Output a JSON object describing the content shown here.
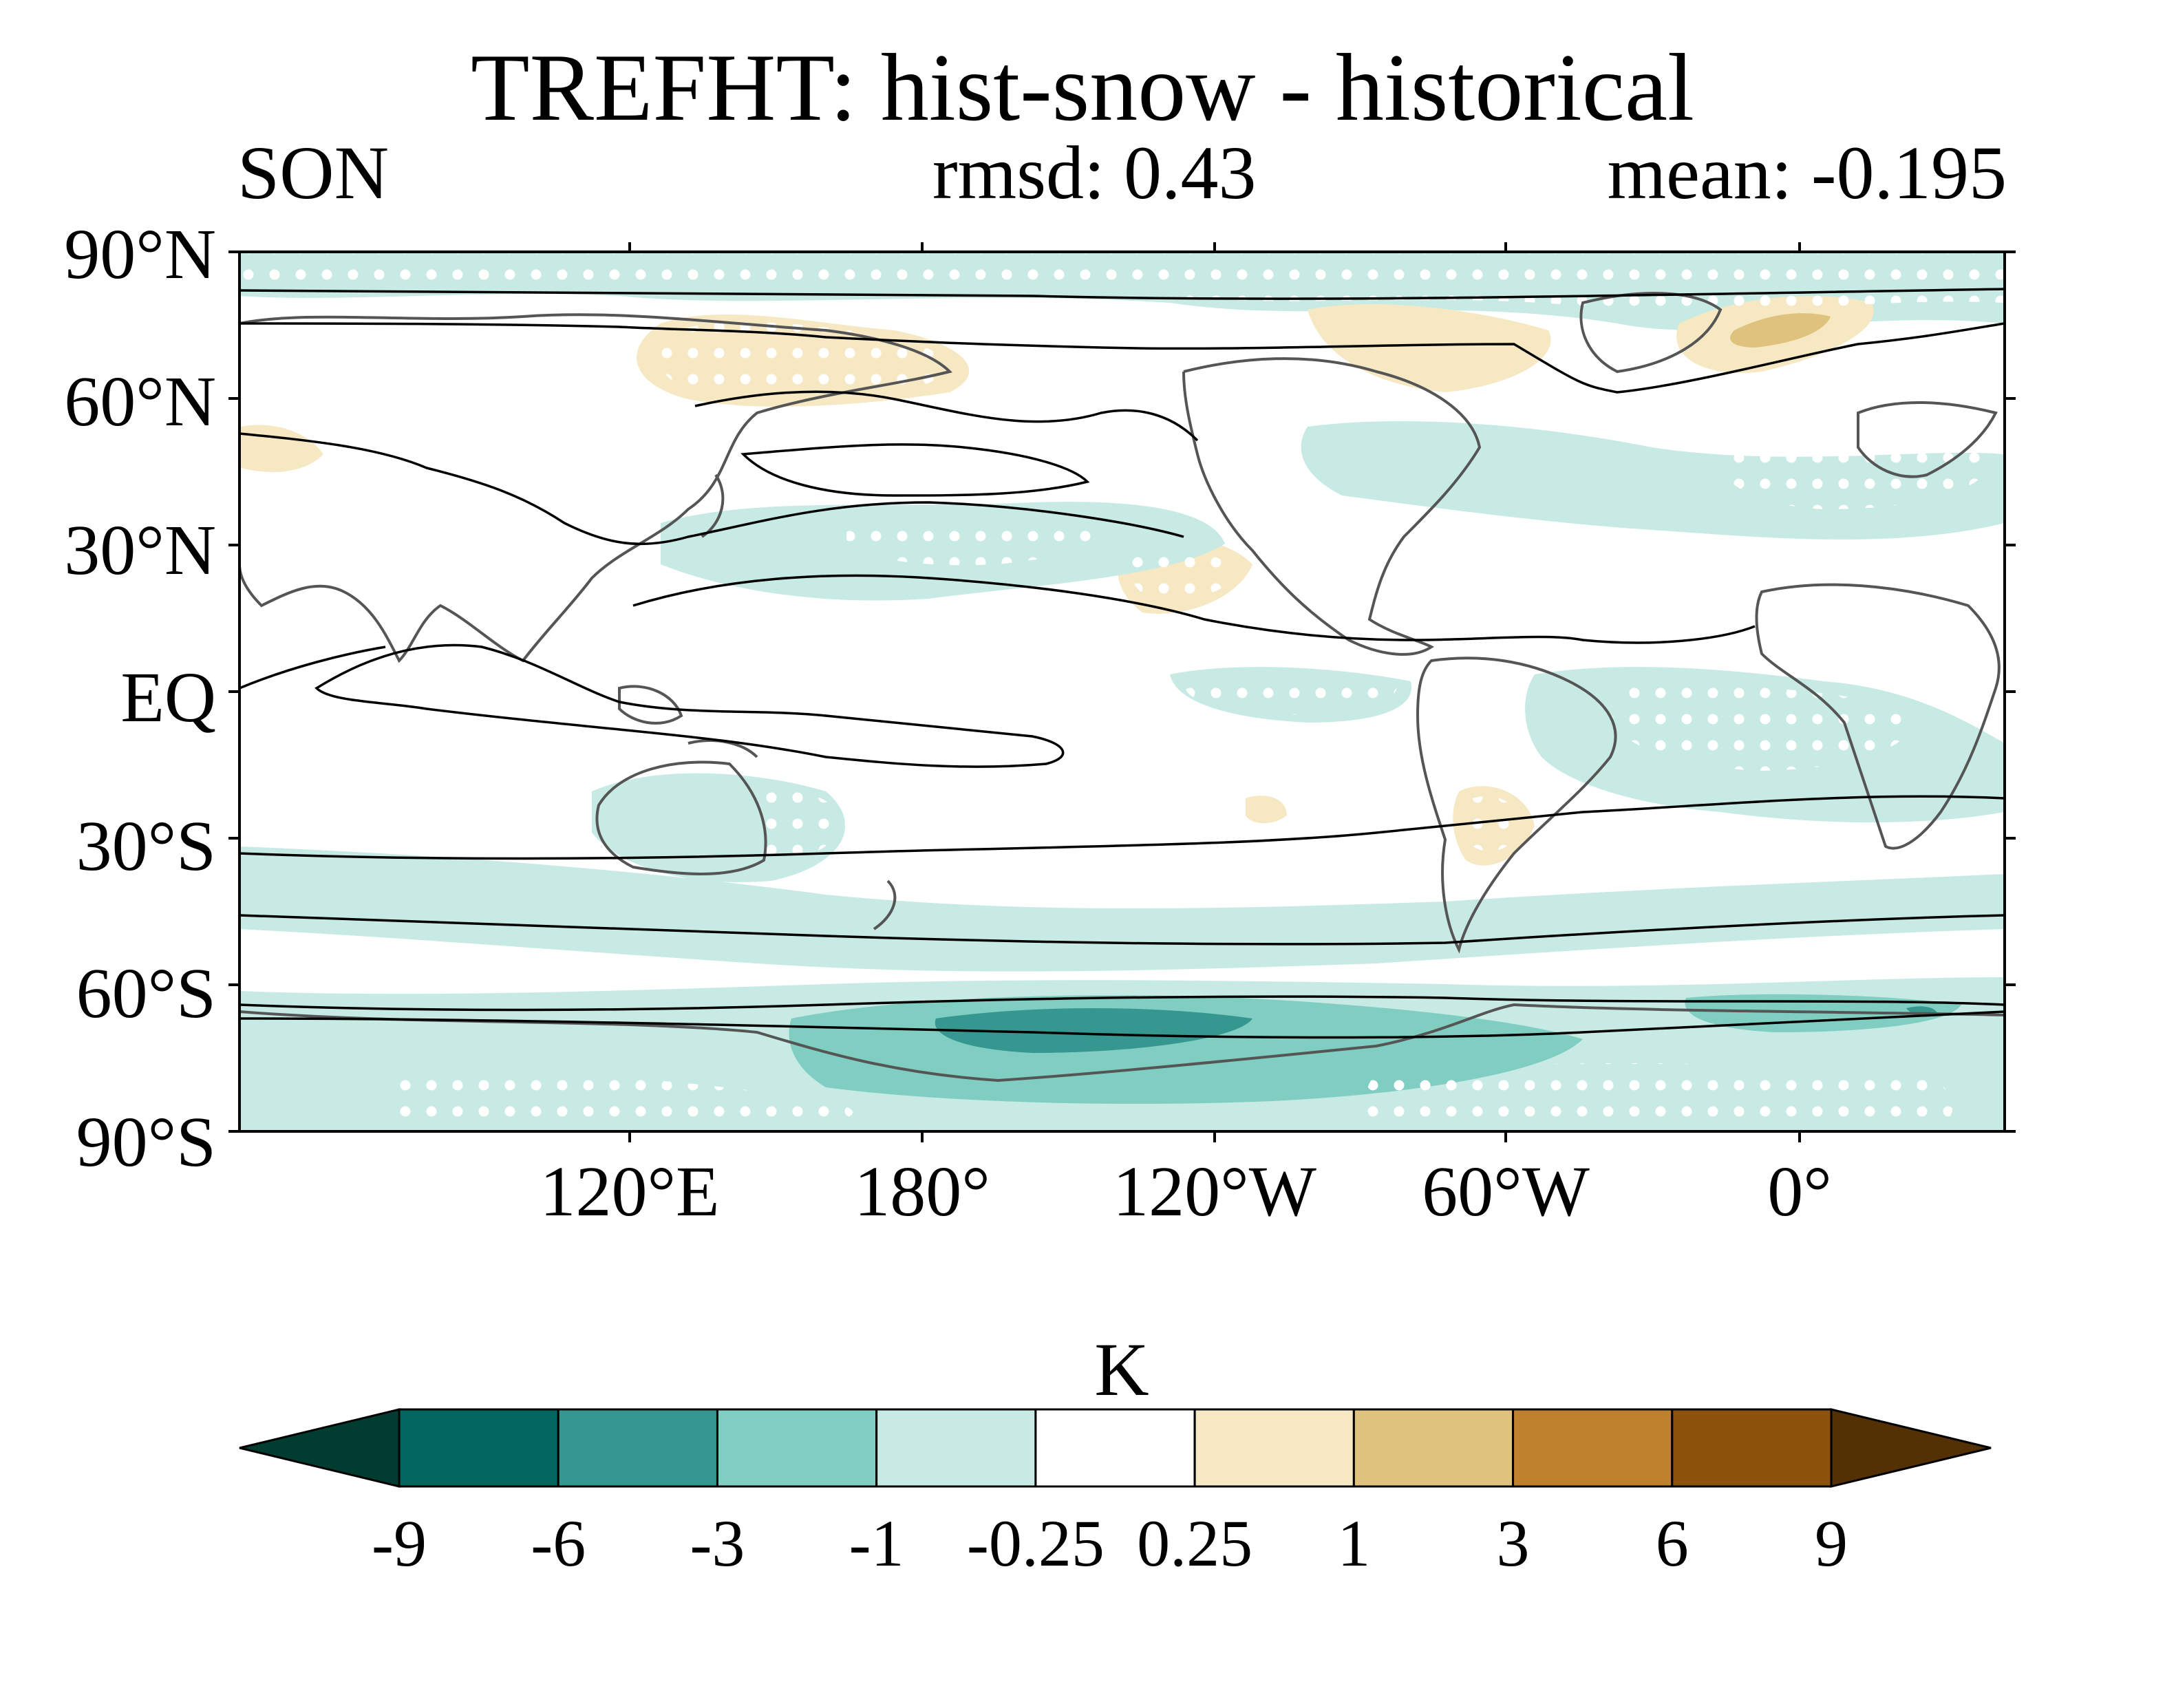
{
  "header": {
    "title": "TREFHT: hist-snow - historical",
    "season": "SON",
    "rmsd": "rmsd: 0.43",
    "mean": "mean: -0.195"
  },
  "map": {
    "projection": "cylindrical equidistant",
    "central_longitude": "center near 150°W",
    "lat_labels": [
      "90°N",
      "60°N",
      "30°N",
      "EQ",
      "30°S",
      "60°S",
      "90°S"
    ],
    "lon_labels": [
      "120°E",
      "180°",
      "120°W",
      "60°W",
      "0°"
    ],
    "features": [
      "coastlines",
      "black contour lines of climatology",
      "white stippling for significance",
      "shaded anomaly field"
    ]
  },
  "colorbar": {
    "unit": "K",
    "levels": [
      "-9",
      "-6",
      "-3",
      "-1",
      "-0.25",
      "0.25",
      "1",
      "3",
      "6",
      "9"
    ],
    "colors": [
      "#003c30",
      "#01665e",
      "#35978f",
      "#80cdc1",
      "#c7eae5",
      "#ffffff",
      "#f6e8c3",
      "#dfc27d",
      "#bf812d",
      "#8c510a",
      "#543005"
    ]
  }
}
